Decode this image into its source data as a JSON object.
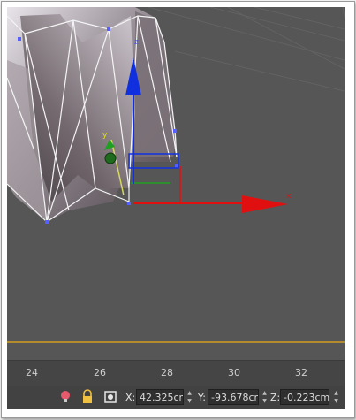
{
  "ruler": {
    "ticks": [
      "24",
      "26",
      "28",
      "30",
      "32"
    ]
  },
  "gizmo": {
    "axis_z": "z",
    "axis_y": "y",
    "axis_x": "x"
  },
  "status_bar": {
    "icons": [
      "lightbulb-icon",
      "lock-icon",
      "transform-mode-icon"
    ],
    "x_label": "X:",
    "x_value": "42.325cm",
    "y_label": "Y:",
    "y_value": "-93.678cm",
    "z_label": "Z:",
    "z_value": "-0.223cm"
  },
  "colors": {
    "viewport_bg": "#565656",
    "axis_x": "#e01010",
    "axis_y": "#20a020",
    "axis_z": "#1030e0",
    "timeline_line": "#b38b2d"
  }
}
